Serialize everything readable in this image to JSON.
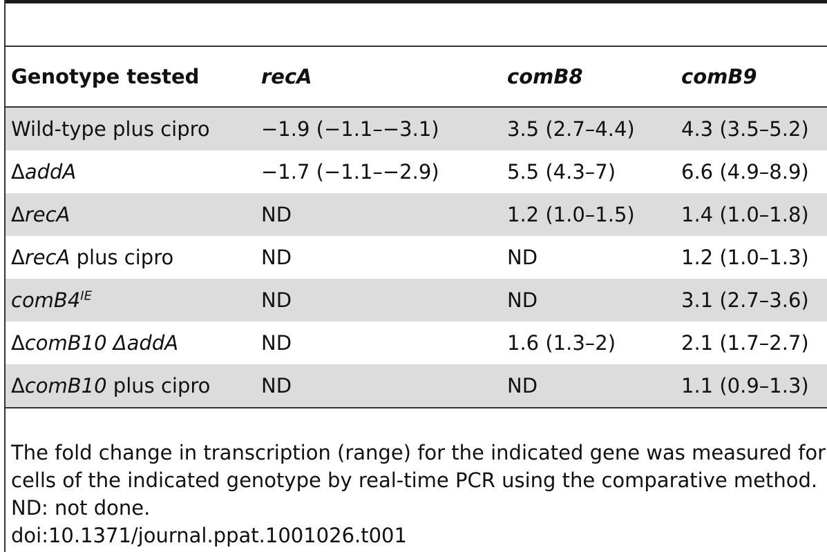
{
  "table": {
    "headers": {
      "genotype": "Genotype tested",
      "col1": "recA",
      "col2": "comB8",
      "col3": "comB9"
    },
    "rows": [
      {
        "genotype": {
          "prefix": "",
          "italic": "",
          "suffix": "Wild-type plus cipro",
          "sup": ""
        },
        "recA": "−1.9 (−1.1–−3.1)",
        "comB8": "3.5 (2.7–4.4)",
        "comB9": "4.3 (3.5–5.2)"
      },
      {
        "genotype": {
          "prefix": "Δ",
          "italic": "addA",
          "suffix": "",
          "sup": ""
        },
        "recA": "−1.7 (−1.1–−2.9)",
        "comB8": "5.5 (4.3–7)",
        "comB9": "6.6 (4.9–8.9)"
      },
      {
        "genotype": {
          "prefix": "Δ",
          "italic": "recA",
          "suffix": "",
          "sup": ""
        },
        "recA": "ND",
        "comB8": "1.2 (1.0–1.5)",
        "comB9": "1.4 (1.0–1.8)"
      },
      {
        "genotype": {
          "prefix": "Δ",
          "italic": "recA",
          "suffix": " plus cipro",
          "sup": ""
        },
        "recA": "ND",
        "comB8": "ND",
        "comB9": "1.2 (1.0–1.3)"
      },
      {
        "genotype": {
          "prefix": "",
          "italic": "comB4",
          "suffix": "",
          "sup": "IE"
        },
        "recA": "ND",
        "comB8": "ND",
        "comB9": "3.1 (2.7–3.6)"
      },
      {
        "genotype": {
          "prefix": "Δ",
          "italic": "comB10 ΔaddA",
          "suffix": "",
          "sup": ""
        },
        "recA": "ND",
        "comB8": "1.6 (1.3–2)",
        "comB9": "2.1 (1.7–2.7)"
      },
      {
        "genotype": {
          "prefix": "Δ",
          "italic": "comB10",
          "suffix": " plus cipro",
          "sup": ""
        },
        "recA": "ND",
        "comB8": "ND",
        "comB9": "1.1 (0.9–1.3)"
      }
    ]
  },
  "footnote": "The fold change in transcription (range) for the indicated gene was measured for cells of the indicated genotype by real-time PCR using the comparative method. ND: not done.",
  "doi": "doi:10.1371/journal.ppat.1001026.t001"
}
